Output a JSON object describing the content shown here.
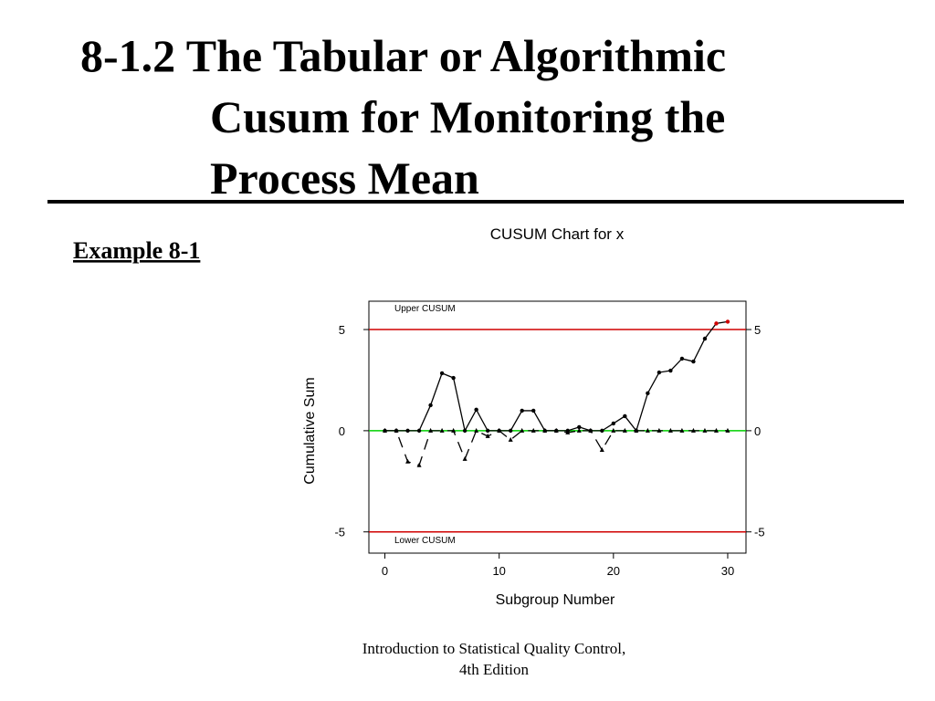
{
  "slide": {
    "title_lines": [
      "8-1.2 The Tabular or Algorithmic",
      "Cusum for Monitoring the",
      "Process Mean"
    ],
    "example": "Example 8-1",
    "footer": [
      "Introduction to Statistical Quality Control,",
      "4th Edition"
    ]
  },
  "chart_data": {
    "type": "line",
    "title": "CUSUM Chart for x",
    "x_label": "Subgroup Number",
    "y_label": "Cumulative Sum",
    "annotations": [
      "Upper CUSUM",
      "Lower CUSUM"
    ],
    "x": [
      0,
      1,
      2,
      3,
      4,
      5,
      6,
      7,
      8,
      9,
      10,
      11,
      12,
      13,
      14,
      15,
      16,
      17,
      18,
      19,
      20,
      21,
      22,
      23,
      24,
      25,
      26,
      27,
      28,
      29,
      30
    ],
    "series": [
      {
        "name": "Upper CUSUM",
        "color": "#000000",
        "dashed": false,
        "values": [
          0,
          0,
          0,
          0,
          1.26,
          2.84,
          2.61,
          0,
          1.04,
          0,
          0,
          0,
          0.99,
          0.99,
          0,
          0,
          0,
          0.18,
          0,
          0,
          0.36,
          0.72,
          0,
          1.85,
          2.88,
          2.97,
          3.56,
          3.42,
          4.55,
          5.3,
          5.39
        ]
      },
      {
        "name": "Lower CUSUM",
        "color": "#000000",
        "dashed": true,
        "values": [
          0,
          0,
          -1.53,
          -1.71,
          0,
          0,
          0,
          -1.4,
          0,
          -0.27,
          0,
          -0.45,
          0,
          0,
          0,
          0,
          -0.09,
          0,
          0,
          -0.95,
          0,
          0,
          0,
          0,
          0,
          0,
          0,
          0,
          0,
          0,
          0
        ]
      }
    ],
    "control_limits": [
      -5,
      5
    ],
    "limit_color": "#d00000",
    "center": 0,
    "center_color": "#00d000",
    "out_of_control_color": "#d00000",
    "xlim": [
      -1.4,
      31.6
    ],
    "ylim": [
      -6.05,
      6.4
    ],
    "xticks": [
      0,
      10,
      20,
      30
    ],
    "yticks": [
      -5,
      0,
      5
    ],
    "y2ticks": [
      -5,
      0,
      5
    ]
  }
}
